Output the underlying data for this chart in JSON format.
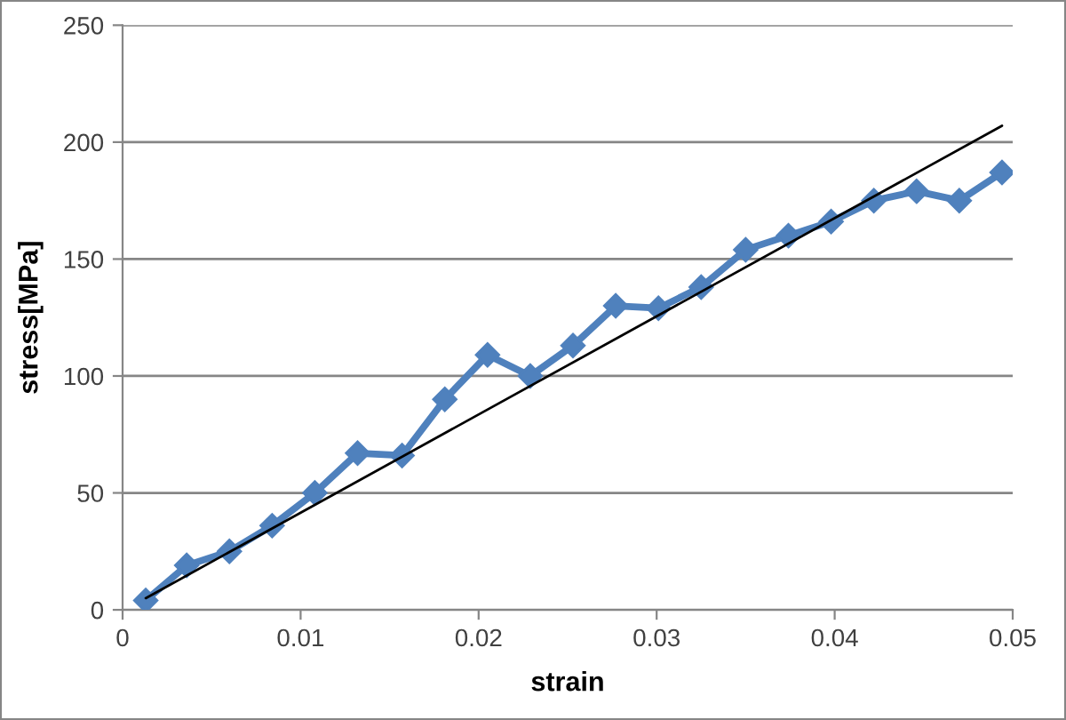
{
  "chart_data": {
    "type": "line",
    "xlabel": "strain",
    "ylabel": "stress[MPa]",
    "xlim": [
      0,
      0.05
    ],
    "xticks": [
      0,
      0.01,
      0.02,
      0.03,
      0.04,
      0.05
    ],
    "ylim": [
      0,
      250
    ],
    "yticks": [
      0,
      50,
      100,
      150,
      200,
      250
    ],
    "grid": "y",
    "series": [
      {
        "color": "#4f81bd",
        "marker": "diamond",
        "x": [
          0.0013,
          0.0036,
          0.006,
          0.0084,
          0.0108,
          0.0132,
          0.0157,
          0.0181,
          0.0205,
          0.0229,
          0.0253,
          0.0277,
          0.0301,
          0.0325,
          0.035,
          0.0374,
          0.0398,
          0.0422,
          0.0446,
          0.047,
          0.0494
        ],
        "values": [
          4,
          19,
          25,
          36,
          50,
          67,
          66,
          90,
          109,
          100,
          113,
          130,
          129,
          138,
          154,
          160,
          166,
          175,
          179,
          175,
          187
        ]
      },
      {
        "type": "line",
        "color": "#000000",
        "marker": "none",
        "x": [
          0.0013,
          0.0494
        ],
        "values": [
          5,
          207
        ]
      }
    ]
  }
}
